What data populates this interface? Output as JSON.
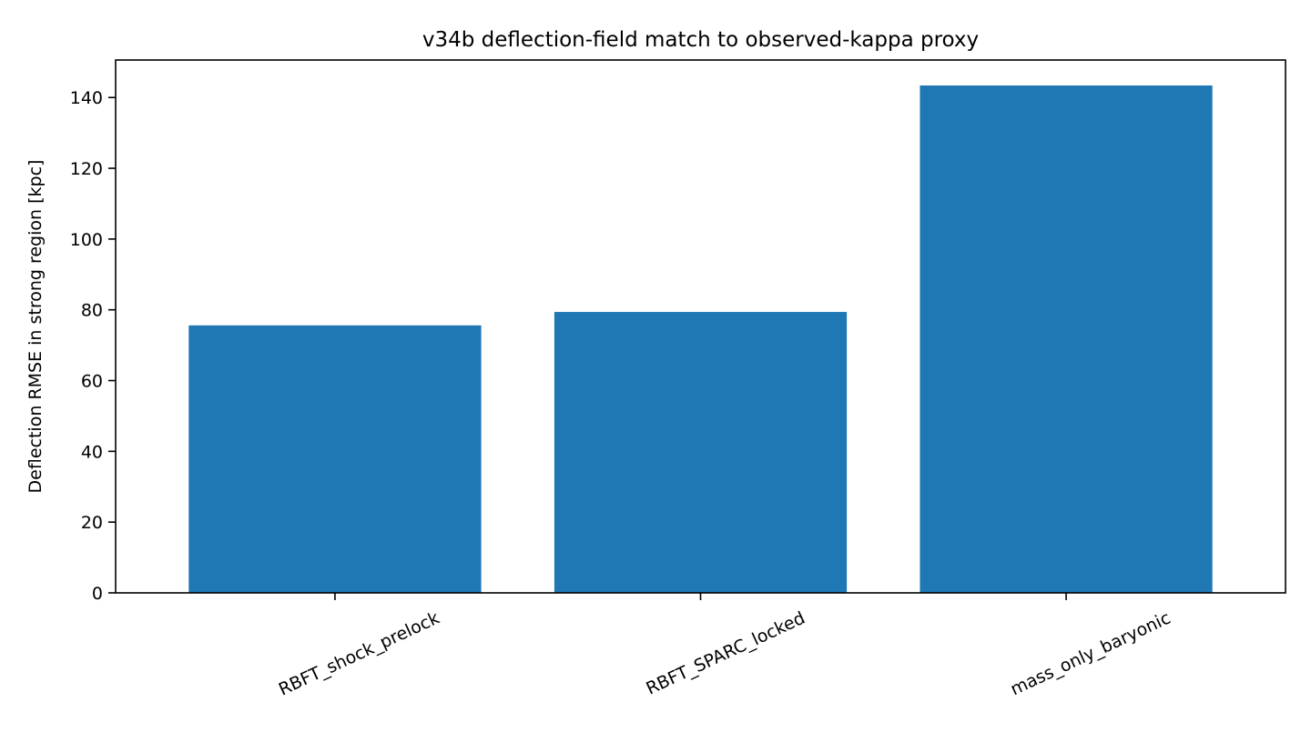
{
  "chart_data": {
    "type": "bar",
    "title": "v34b deflection-field match to observed-kappa proxy",
    "xlabel": "",
    "ylabel": "Deflection RMSE in strong region [kpc]",
    "categories": [
      "RBFT_shock_prelock",
      "RBFT_SPARC_locked",
      "mass_only_baryonic"
    ],
    "values": [
      75.6,
      79.4,
      143.4
    ],
    "ylim": [
      0,
      150.6
    ],
    "yticks": [
      0,
      20,
      40,
      60,
      80,
      100,
      120,
      140
    ],
    "bar_color": "#1f77b4",
    "grid": false,
    "legend": "none"
  }
}
